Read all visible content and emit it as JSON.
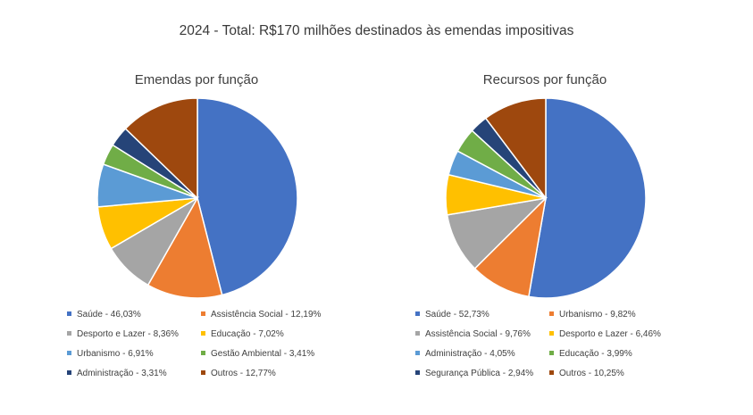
{
  "page": {
    "title": "2024 - Total: R$170 milhões destinados às emendas impositivas"
  },
  "chart_data": [
    {
      "type": "pie",
      "title": "Emendas por função",
      "slices": [
        {
          "label": "Saúde - 46,03%",
          "value": 46.03,
          "color": "#4472C4"
        },
        {
          "label": "Assistência Social - 12,19%",
          "value": 12.19,
          "color": "#ED7D31"
        },
        {
          "label": "Desporto e Lazer - 8,36%",
          "value": 8.36,
          "color": "#A5A5A5"
        },
        {
          "label": "Educação - 7,02%",
          "value": 7.02,
          "color": "#FFC000"
        },
        {
          "label": "Urbanismo - 6,91%",
          "value": 6.91,
          "color": "#5B9BD5"
        },
        {
          "label": "Gestão Ambiental - 3,41%",
          "value": 3.41,
          "color": "#70AD47"
        },
        {
          "label": "Administração - 3,31%",
          "value": 3.31,
          "color": "#264478"
        },
        {
          "label": "Outros - 12,77%",
          "value": 12.77,
          "color": "#9E480E"
        }
      ]
    },
    {
      "type": "pie",
      "title": "Recursos por função",
      "slices": [
        {
          "label": "Saúde - 52,73%",
          "value": 52.73,
          "color": "#4472C4"
        },
        {
          "label": "Urbanismo - 9,82%",
          "value": 9.82,
          "color": "#ED7D31"
        },
        {
          "label": "Assistência Social - 9,76%",
          "value": 9.76,
          "color": "#A5A5A5"
        },
        {
          "label": "Desporto e Lazer - 6,46%",
          "value": 6.46,
          "color": "#FFC000"
        },
        {
          "label": "Administração - 4,05%",
          "value": 4.05,
          "color": "#5B9BD5"
        },
        {
          "label": "Educação - 3,99%",
          "value": 3.99,
          "color": "#70AD47"
        },
        {
          "label": "Segurança Pública - 2,94%",
          "value": 2.94,
          "color": "#264478"
        },
        {
          "label": "Outros - 10,25%",
          "value": 10.25,
          "color": "#9E480E"
        }
      ]
    }
  ]
}
